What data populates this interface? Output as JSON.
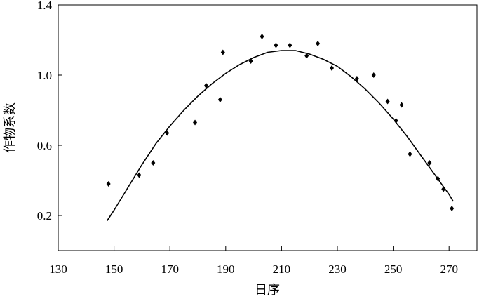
{
  "chart_data": {
    "type": "scatter",
    "xlabel": "日序",
    "ylabel": "作物系数",
    "xlim": [
      130,
      280
    ],
    "ylim": [
      0.0,
      1.4
    ],
    "xticks": [
      "130",
      "150",
      "170",
      "190",
      "210",
      "230",
      "250",
      "270"
    ],
    "yticks": [
      "0.2",
      "0.6",
      "1.0",
      "1.4"
    ],
    "grid": false,
    "series": [
      {
        "kind": "points",
        "marker": "diamond",
        "x": [
          148,
          159,
          164,
          169,
          179,
          183,
          188,
          189,
          199,
          203,
          208,
          213,
          219,
          223,
          228,
          237,
          243,
          248,
          251,
          253,
          256,
          263,
          266,
          268,
          271
        ],
        "y": [
          0.38,
          0.43,
          0.5,
          0.67,
          0.73,
          0.94,
          0.86,
          1.13,
          1.08,
          1.22,
          1.17,
          1.17,
          1.11,
          1.18,
          1.04,
          0.98,
          1.0,
          0.85,
          0.74,
          0.83,
          0.55,
          0.5,
          0.41,
          0.35,
          0.24
        ]
      },
      {
        "kind": "line",
        "x": [
          147.5,
          150,
          155,
          160,
          165,
          170,
          175,
          180,
          185,
          190,
          195,
          200,
          205,
          210,
          215,
          220,
          225,
          230,
          235,
          240,
          245,
          250,
          255,
          260,
          265,
          270,
          271.5
        ],
        "y": [
          0.17,
          0.23,
          0.36,
          0.49,
          0.61,
          0.71,
          0.8,
          0.88,
          0.95,
          1.01,
          1.06,
          1.1,
          1.13,
          1.14,
          1.14,
          1.12,
          1.09,
          1.05,
          0.99,
          0.92,
          0.84,
          0.75,
          0.65,
          0.54,
          0.43,
          0.32,
          0.28
        ]
      }
    ]
  }
}
